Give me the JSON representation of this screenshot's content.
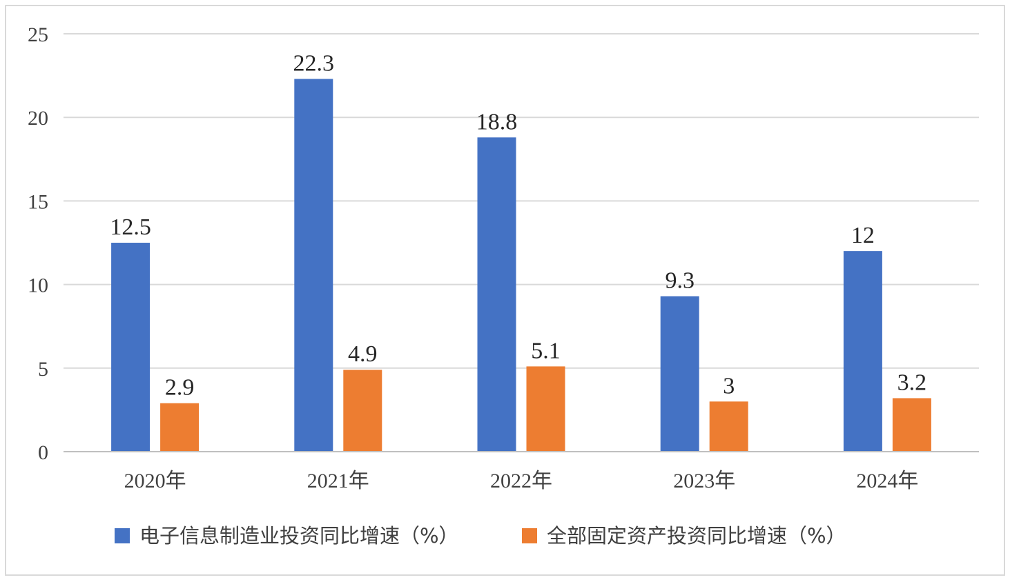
{
  "chart_data": {
    "type": "bar",
    "title": "",
    "xlabel": "",
    "ylabel": "",
    "categories": [
      "2020年",
      "2021年",
      "2022年",
      "2023年",
      "2024年"
    ],
    "series": [
      {
        "name": "电子信息制造业投资同比增速（%）",
        "color": "#4472c4",
        "values": [
          12.5,
          22.3,
          18.8,
          9.3,
          12
        ]
      },
      {
        "name": "全部固定资产投资同比增速（%）",
        "color": "#ed7d31",
        "values": [
          2.9,
          4.9,
          5.1,
          3,
          3.2
        ]
      }
    ],
    "ylim": [
      0,
      25
    ],
    "yticks": [
      0,
      5,
      10,
      15,
      20,
      25
    ],
    "grid": true,
    "legend_position": "bottom",
    "data_labels": true
  }
}
